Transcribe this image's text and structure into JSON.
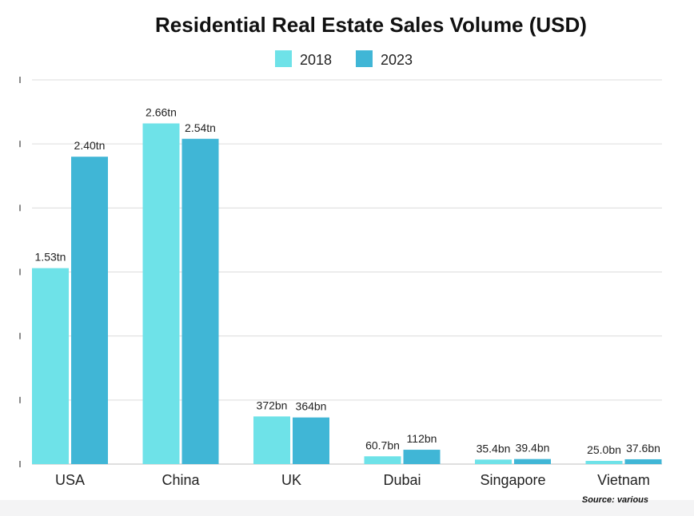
{
  "chart_data": {
    "type": "bar",
    "title": "Residential Real Estate Sales Volume (USD)",
    "categories": [
      "USA",
      "China",
      "UK",
      "Dubai",
      "Singapore",
      "Vietnam"
    ],
    "series": [
      {
        "name": "2018",
        "color": "#6ee2e8",
        "values": [
          1530,
          2660,
          372,
          60.7,
          35.4,
          25.0
        ],
        "labels": [
          "1.53tn",
          "2.66tn",
          "372bn",
          "60.7bn",
          "35.4bn",
          "25.0bn"
        ]
      },
      {
        "name": "2023",
        "color": "#40b6d6",
        "values": [
          2400,
          2540,
          364,
          112,
          39.4,
          37.6
        ],
        "labels": [
          "2.40tn",
          "2.54tn",
          "364bn",
          "112bn",
          "39.4bn",
          "37.6bn"
        ]
      }
    ],
    "xlabel": "",
    "ylabel": "",
    "ylim": [
      0,
      3000
    ],
    "grid": true,
    "legend": "top-center",
    "source_note": "Source: various"
  }
}
